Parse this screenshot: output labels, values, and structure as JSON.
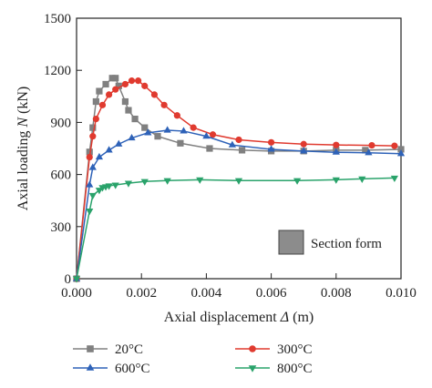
{
  "chart_data": {
    "type": "line",
    "xlabel_prefix": "Axial displacement ",
    "xlabel_symbol": "Δ",
    "xlabel_suffix": " (m)",
    "ylabel_prefix": "Axial loading ",
    "ylabel_symbol": "N",
    "ylabel_suffix": " (kN)",
    "xlim": [
      0,
      0.01
    ],
    "ylim": [
      0,
      1500
    ],
    "x_ticks": [
      "0.000",
      "0.002",
      "0.004",
      "0.006",
      "0.008",
      "0.010"
    ],
    "y_ticks": [
      "0",
      "300",
      "600",
      "900",
      "1200",
      "1500"
    ],
    "grid": false,
    "legend_position": "bottom",
    "inset_label": "Section form",
    "series": [
      {
        "name": "20°C",
        "color": "#808080",
        "marker": "square",
        "points": [
          [
            0.0,
            0
          ],
          [
            0.0004,
            730
          ],
          [
            0.0005,
            870
          ],
          [
            0.0006,
            1020
          ],
          [
            0.0007,
            1080
          ],
          [
            0.0009,
            1120
          ],
          [
            0.0011,
            1155
          ],
          [
            0.0012,
            1155
          ],
          [
            0.0013,
            1110
          ],
          [
            0.0015,
            1020
          ],
          [
            0.0016,
            970
          ],
          [
            0.0018,
            920
          ],
          [
            0.0021,
            870
          ],
          [
            0.0025,
            820
          ],
          [
            0.0032,
            780
          ],
          [
            0.0041,
            750
          ],
          [
            0.0051,
            740
          ],
          [
            0.006,
            735
          ],
          [
            0.007,
            735
          ],
          [
            0.008,
            740
          ],
          [
            0.0089,
            740
          ],
          [
            0.01,
            745
          ]
        ]
      },
      {
        "name": "300°C",
        "color": "#e03a2f",
        "marker": "circle",
        "points": [
          [
            0.0,
            0
          ],
          [
            0.0004,
            700
          ],
          [
            0.0005,
            820
          ],
          [
            0.0006,
            920
          ],
          [
            0.0008,
            1000
          ],
          [
            0.001,
            1060
          ],
          [
            0.0012,
            1090
          ],
          [
            0.0015,
            1120
          ],
          [
            0.0017,
            1140
          ],
          [
            0.0019,
            1140
          ],
          [
            0.0021,
            1110
          ],
          [
            0.0024,
            1060
          ],
          [
            0.0027,
            1000
          ],
          [
            0.0031,
            940
          ],
          [
            0.0036,
            870
          ],
          [
            0.0042,
            830
          ],
          [
            0.005,
            800
          ],
          [
            0.006,
            785
          ],
          [
            0.007,
            775
          ],
          [
            0.008,
            770
          ],
          [
            0.0091,
            768
          ],
          [
            0.0098,
            765
          ]
        ]
      },
      {
        "name": "600°C",
        "color": "#2e62b8",
        "marker": "triangle-up",
        "points": [
          [
            0.0,
            0
          ],
          [
            0.0004,
            540
          ],
          [
            0.0005,
            640
          ],
          [
            0.0007,
            700
          ],
          [
            0.001,
            740
          ],
          [
            0.0013,
            775
          ],
          [
            0.0017,
            810
          ],
          [
            0.0022,
            840
          ],
          [
            0.0028,
            855
          ],
          [
            0.0033,
            850
          ],
          [
            0.004,
            820
          ],
          [
            0.0048,
            770
          ],
          [
            0.006,
            745
          ],
          [
            0.007,
            735
          ],
          [
            0.008,
            728
          ],
          [
            0.009,
            725
          ],
          [
            0.01,
            720
          ]
        ]
      },
      {
        "name": "800°C",
        "color": "#2aa36b",
        "marker": "triangle-down",
        "points": [
          [
            0.0,
            0
          ],
          [
            0.0004,
            390
          ],
          [
            0.0005,
            480
          ],
          [
            0.0007,
            510
          ],
          [
            0.0008,
            525
          ],
          [
            0.0009,
            530
          ],
          [
            0.001,
            535
          ],
          [
            0.0012,
            540
          ],
          [
            0.0016,
            550
          ],
          [
            0.0021,
            560
          ],
          [
            0.0028,
            565
          ],
          [
            0.0038,
            570
          ],
          [
            0.005,
            565
          ],
          [
            0.0068,
            565
          ],
          [
            0.008,
            570
          ],
          [
            0.0088,
            575
          ],
          [
            0.0098,
            580
          ]
        ]
      }
    ]
  }
}
